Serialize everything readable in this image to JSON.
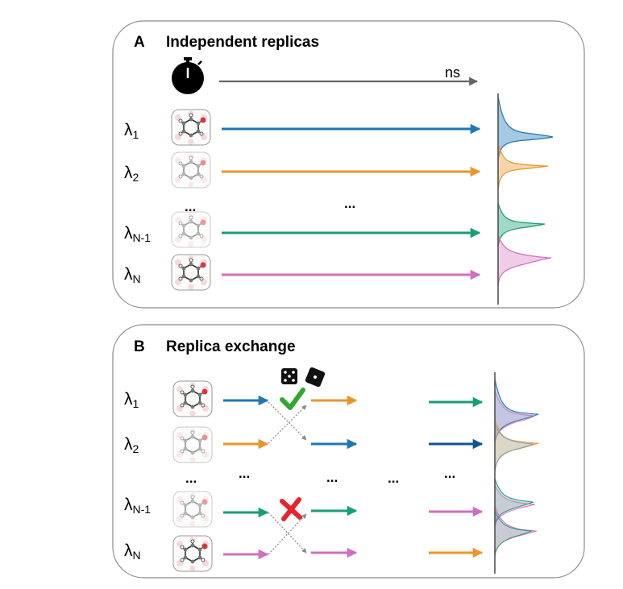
{
  "colors": {
    "blue": "#1f77b4",
    "orange": "#e8962a",
    "green": "#169e74",
    "pink": "#d06fbf",
    "darkblue": "#12528f",
    "gray": "#666666",
    "check": "#2fa82f",
    "cross": "#e4262c"
  },
  "panel_a": {
    "letter": "A",
    "title": "Independent replicas",
    "time_unit": "ns",
    "icon": "stopwatch-icon",
    "ellipsis_rows": "...",
    "ellipsis_arrows": "...",
    "rows": [
      {
        "lambda": "λ",
        "sub": "1",
        "color": "blue"
      },
      {
        "lambda": "λ",
        "sub": "2",
        "color": "orange"
      },
      {
        "lambda": "λ",
        "sub": "N-1",
        "color": "green"
      },
      {
        "lambda": "λ",
        "sub": "N",
        "color": "pink"
      }
    ]
  },
  "panel_b": {
    "letter": "B",
    "title": "Replica exchange",
    "icons": [
      "dice-icon",
      "checkmark-icon",
      "cross-icon"
    ],
    "ellipsis": "...",
    "rows": [
      {
        "lambda": "λ",
        "sub": "1",
        "colors": [
          "blue",
          "orange",
          "green"
        ]
      },
      {
        "lambda": "λ",
        "sub": "2",
        "colors": [
          "orange",
          "blue",
          "darkblue"
        ]
      },
      {
        "lambda": "λ",
        "sub": "N-1",
        "colors": [
          "green",
          "green",
          "pink"
        ]
      },
      {
        "lambda": "λ",
        "sub": "N",
        "colors": [
          "pink",
          "pink",
          "orange"
        ]
      }
    ]
  }
}
